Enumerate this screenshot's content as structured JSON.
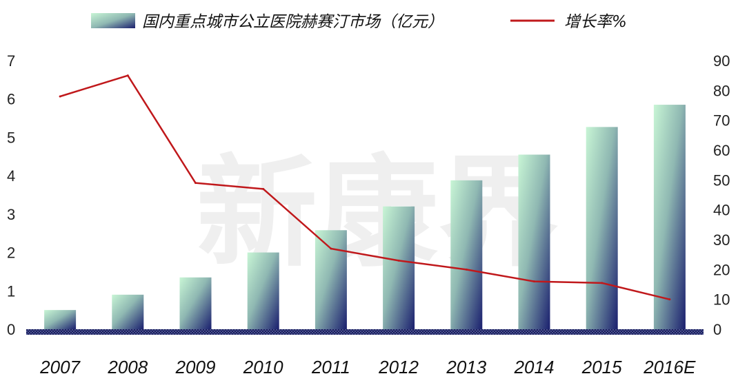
{
  "chart_data": {
    "type": "bar+line",
    "categories": [
      "2007",
      "2008",
      "2009",
      "2010",
      "2011",
      "2012",
      "2013",
      "2014",
      "2015",
      "2016E"
    ],
    "series": [
      {
        "name": "国内重点城市公立医院赫赛汀市场（亿元）",
        "type": "bar",
        "axis": "left",
        "values": [
          0.5,
          0.9,
          1.35,
          2.0,
          2.58,
          3.2,
          3.88,
          4.55,
          5.27,
          5.85
        ]
      },
      {
        "name": "增长率%",
        "type": "line",
        "axis": "right",
        "values": [
          78,
          85,
          49,
          47,
          27,
          23,
          20,
          16,
          15.5,
          10
        ]
      }
    ],
    "left_axis": {
      "range": [
        0,
        7
      ],
      "ticks": [
        "0",
        "1",
        "2",
        "3",
        "4",
        "5",
        "6",
        "7"
      ]
    },
    "right_axis": {
      "range": [
        0,
        90
      ],
      "ticks": [
        "0",
        "10",
        "20",
        "30",
        "40",
        "50",
        "60",
        "70",
        "80",
        "90"
      ]
    },
    "legend_position": "top",
    "grid": false,
    "watermark": "新康界",
    "colors": {
      "bar_light": "#c8f5d5",
      "bar_dark": "#1a1f6e",
      "line": "#c0181b",
      "axis": "#2a2f6a"
    }
  }
}
